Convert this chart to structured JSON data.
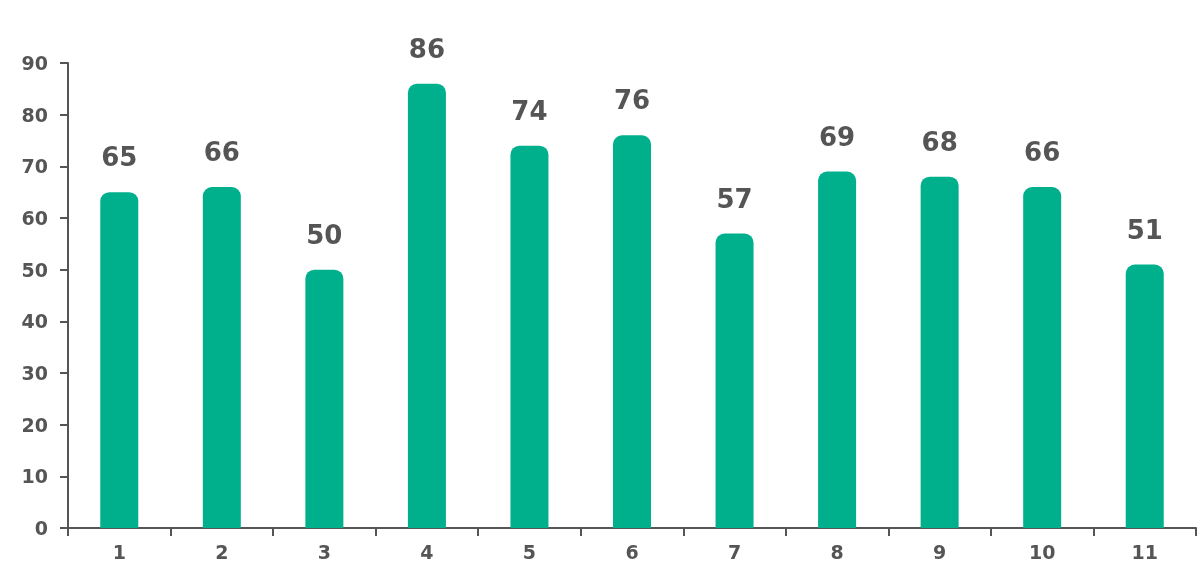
{
  "chart_data": {
    "type": "bar",
    "categories": [
      "1",
      "2",
      "3",
      "4",
      "5",
      "6",
      "7",
      "8",
      "9",
      "10",
      "11"
    ],
    "values": [
      65,
      66,
      50,
      86,
      74,
      76,
      57,
      69,
      68,
      66,
      51
    ],
    "color": "#00b08c",
    "ylim": [
      0,
      90
    ],
    "yticks": [
      0,
      10,
      20,
      30,
      40,
      50,
      60,
      70,
      80,
      90
    ],
    "grid": false,
    "data_labels": true
  }
}
